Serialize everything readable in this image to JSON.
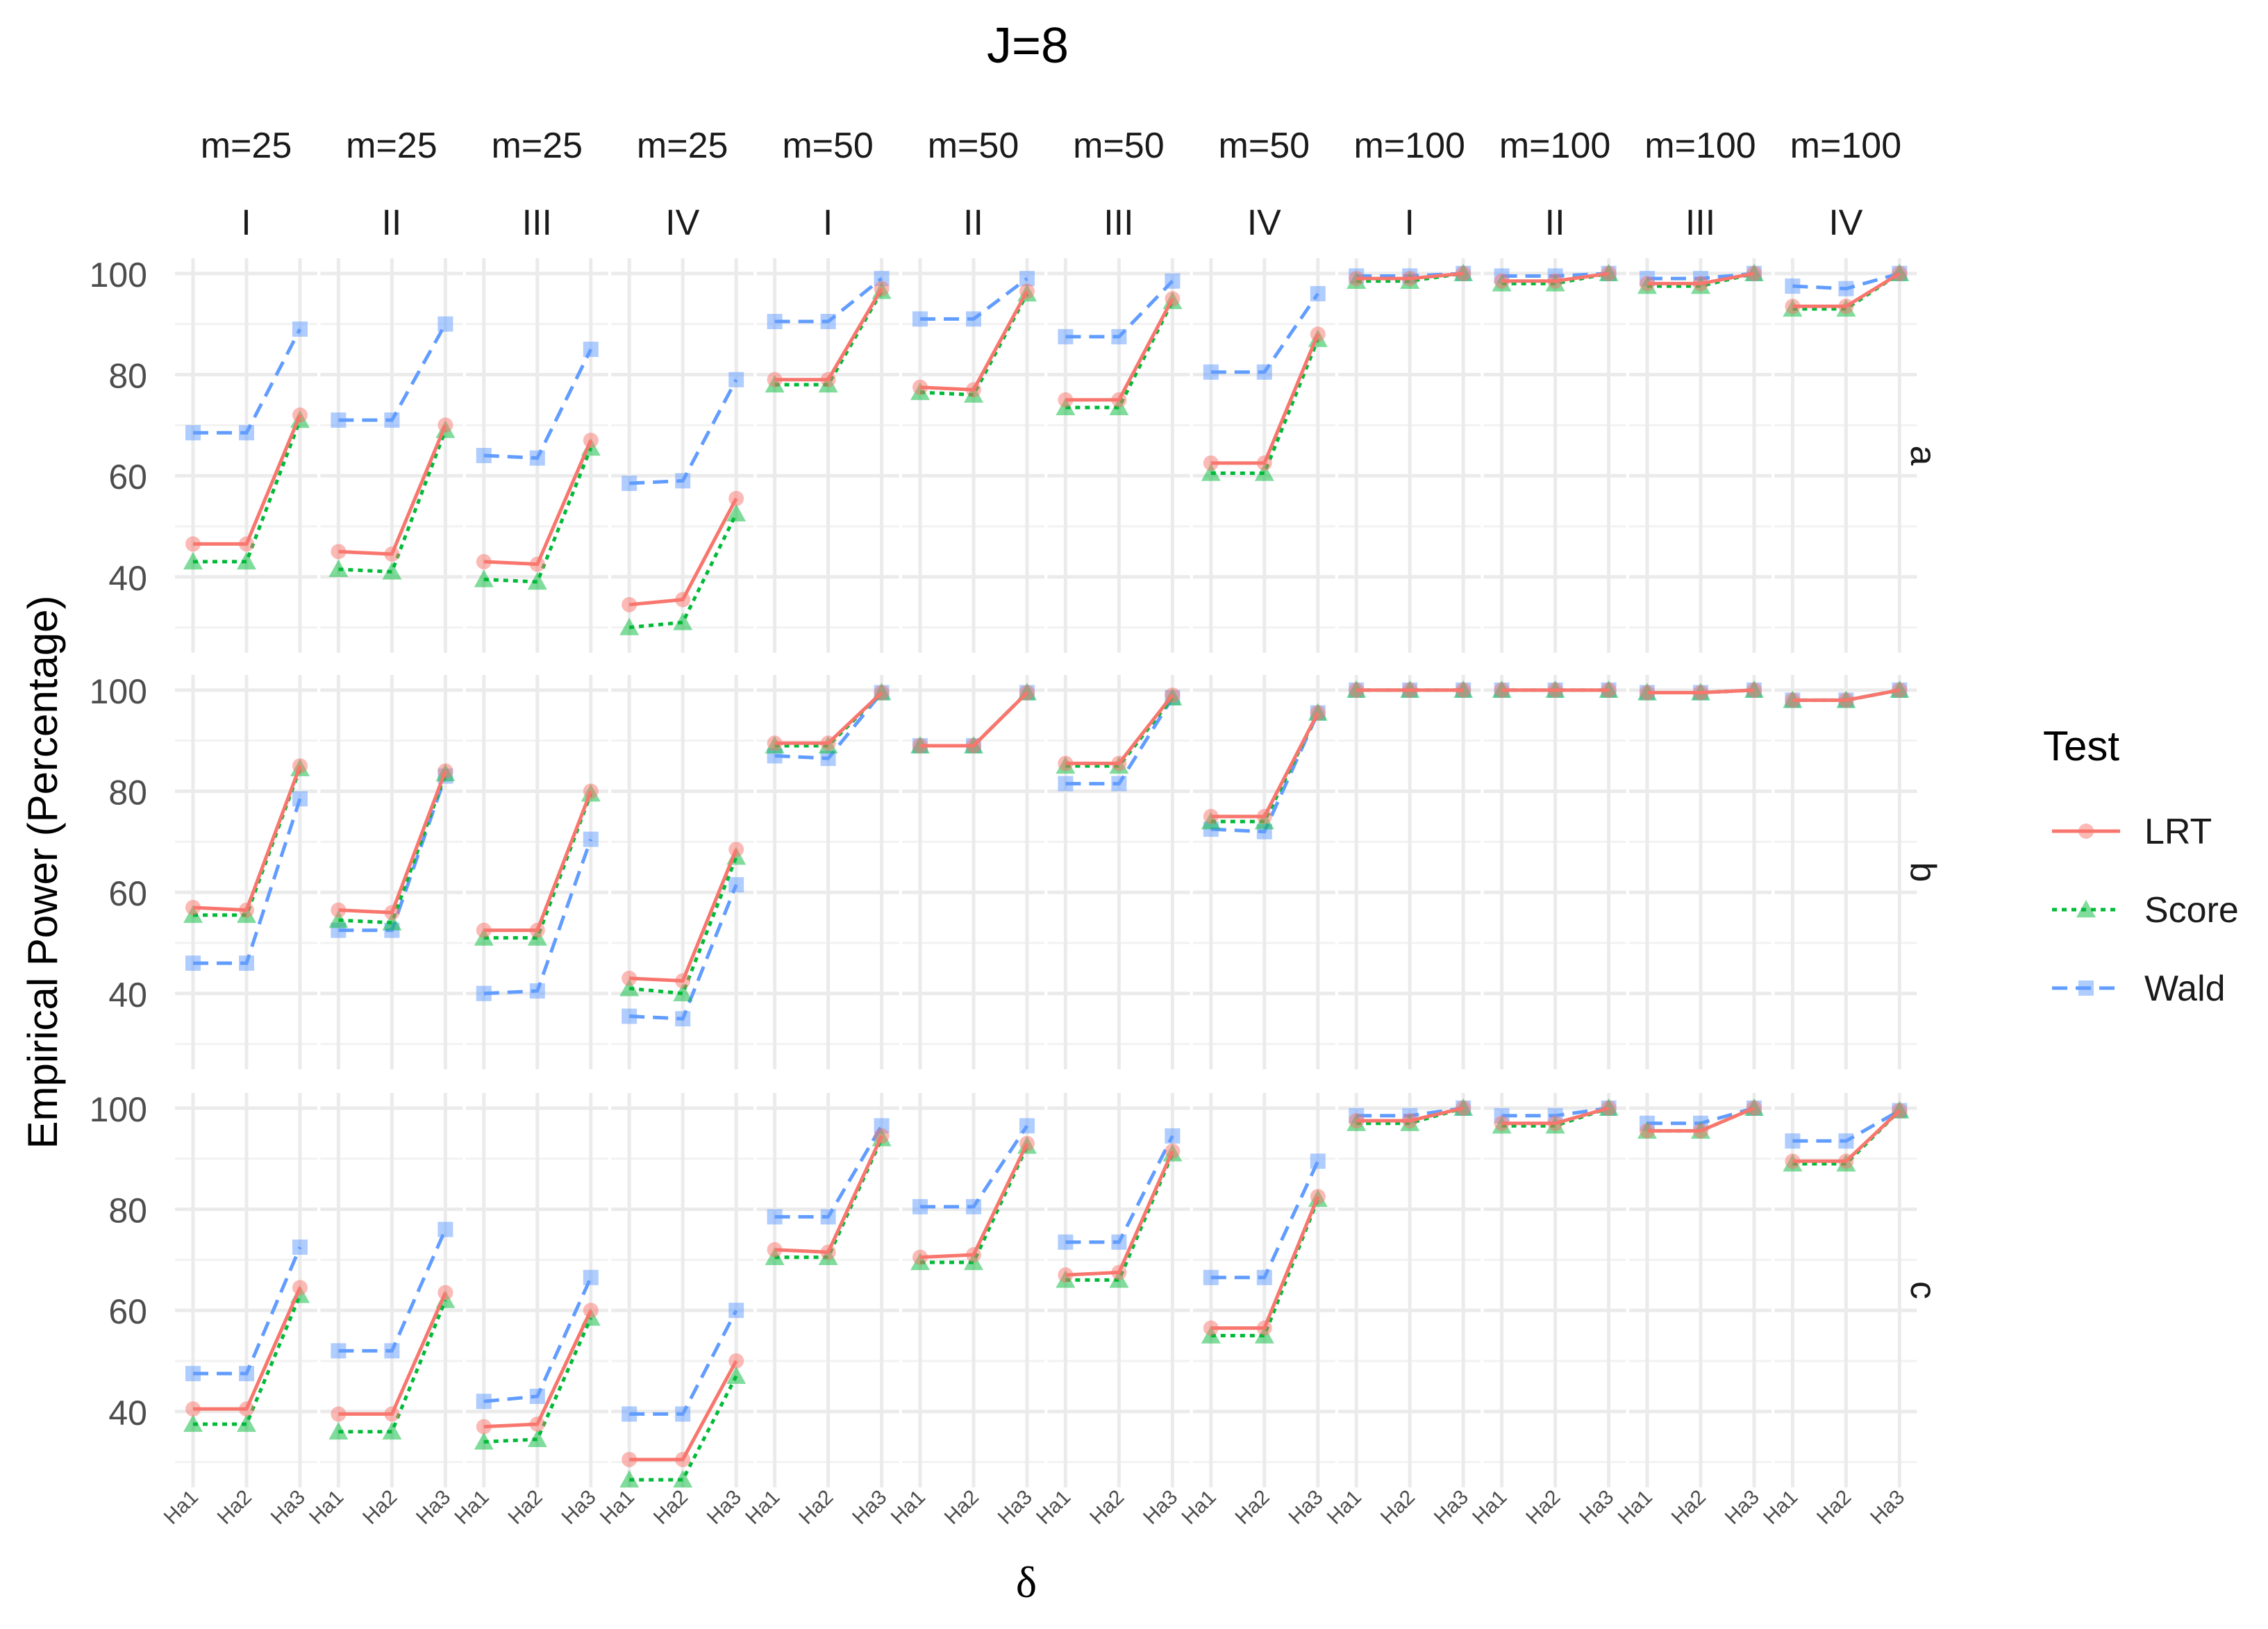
{
  "chart_data": {
    "type": "line",
    "title": "J=8",
    "xlabel": "δ",
    "ylabel": "Empirical Power (Percentage)",
    "categories": [
      "Ha1",
      "Ha2",
      "Ha3"
    ],
    "yticks": [
      40,
      60,
      80,
      100
    ],
    "ylim": [
      25,
      103
    ],
    "grid": true,
    "legend": {
      "title": "Test",
      "position": "right",
      "entries": [
        "LRT",
        "Score",
        "Wald"
      ]
    },
    "series_styles": [
      {
        "name": "LRT",
        "color": "#F8766D",
        "dash": "solid",
        "marker": "circle"
      },
      {
        "name": "Score",
        "color": "#00BA38",
        "dash": "dotted",
        "marker": "triangle"
      },
      {
        "name": "Wald",
        "color": "#619CFF",
        "dash": "dashed",
        "marker": "square"
      }
    ],
    "column_strips_top": [
      "m=25",
      "m=25",
      "m=25",
      "m=25",
      "m=50",
      "m=50",
      "m=50",
      "m=50",
      "m=100",
      "m=100",
      "m=100",
      "m=100"
    ],
    "column_strips_bottom": [
      "I",
      "II",
      "III",
      "IV",
      "I",
      "II",
      "III",
      "IV",
      "I",
      "II",
      "III",
      "IV"
    ],
    "row_strips": [
      "a",
      "b",
      "c"
    ],
    "panels": [
      [
        {
          "LRT": [
            46.5,
            46.5,
            72
          ],
          "Score": [
            43,
            43,
            71
          ],
          "Wald": [
            68.5,
            68.5,
            89
          ]
        },
        {
          "LRT": [
            45,
            44.5,
            70
          ],
          "Score": [
            41.5,
            41,
            69
          ],
          "Wald": [
            71,
            71,
            90
          ]
        },
        {
          "LRT": [
            43,
            42.5,
            67
          ],
          "Score": [
            39.5,
            39,
            65.5
          ],
          "Wald": [
            64,
            63.5,
            85
          ]
        },
        {
          "LRT": [
            34.5,
            35.5,
            55.5
          ],
          "Score": [
            30,
            31,
            52.5
          ],
          "Wald": [
            58.5,
            59,
            79
          ]
        },
        {
          "LRT": [
            79,
            79,
            97
          ],
          "Score": [
            78,
            78,
            96.5
          ],
          "Wald": [
            90.5,
            90.5,
            99
          ]
        },
        {
          "LRT": [
            77.5,
            77,
            96.5
          ],
          "Score": [
            76.5,
            76,
            96
          ],
          "Wald": [
            91,
            91,
            99
          ]
        },
        {
          "LRT": [
            75,
            75,
            95
          ],
          "Score": [
            73.5,
            73.5,
            94.5
          ],
          "Wald": [
            87.5,
            87.5,
            98.5
          ]
        },
        {
          "LRT": [
            62.5,
            62.5,
            88
          ],
          "Score": [
            60.5,
            60.5,
            87
          ],
          "Wald": [
            80.5,
            80.5,
            96
          ]
        },
        {
          "LRT": [
            99,
            99,
            100
          ],
          "Score": [
            98.5,
            98.5,
            100
          ],
          "Wald": [
            99.5,
            99.5,
            100
          ]
        },
        {
          "LRT": [
            98.5,
            98.5,
            100
          ],
          "Score": [
            98,
            98,
            100
          ],
          "Wald": [
            99.5,
            99.5,
            100
          ]
        },
        {
          "LRT": [
            98,
            98,
            100
          ],
          "Score": [
            97.5,
            97.5,
            100
          ],
          "Wald": [
            99,
            99,
            100
          ]
        },
        {
          "LRT": [
            93.5,
            93.5,
            100
          ],
          "Score": [
            93,
            93,
            100
          ],
          "Wald": [
            97.5,
            97,
            100
          ]
        }
      ],
      [
        {
          "LRT": [
            57,
            56.5,
            85
          ],
          "Score": [
            55.5,
            55.5,
            84.5
          ],
          "Wald": [
            46,
            46,
            78.5
          ]
        },
        {
          "LRT": [
            56.5,
            56,
            84
          ],
          "Score": [
            54.5,
            54,
            83.5
          ],
          "Wald": [
            52.5,
            52.5,
            83
          ]
        },
        {
          "LRT": [
            52.5,
            52.5,
            80
          ],
          "Score": [
            51,
            51,
            79.5
          ],
          "Wald": [
            40,
            40.5,
            70.5
          ]
        },
        {
          "LRT": [
            43,
            42.5,
            68.5
          ],
          "Score": [
            41,
            40,
            67
          ],
          "Wald": [
            35.5,
            35,
            61.5
          ]
        },
        {
          "LRT": [
            89.5,
            89.5,
            99.5
          ],
          "Score": [
            89,
            89,
            99.5
          ],
          "Wald": [
            87,
            86.5,
            99.5
          ]
        },
        {
          "LRT": [
            89,
            89,
            99.5
          ],
          "Score": [
            89,
            89,
            99.5
          ],
          "Wald": [
            89,
            89,
            99.5
          ]
        },
        {
          "LRT": [
            85.5,
            85.5,
            99
          ],
          "Score": [
            85,
            85,
            98.5
          ],
          "Wald": [
            81.5,
            81.5,
            98.5
          ]
        },
        {
          "LRT": [
            75,
            75,
            95.5
          ],
          "Score": [
            74,
            74,
            95.5
          ],
          "Wald": [
            72.5,
            72,
            95.5
          ]
        },
        {
          "LRT": [
            100,
            100,
            100
          ],
          "Score": [
            100,
            100,
            100
          ],
          "Wald": [
            100,
            100,
            100
          ]
        },
        {
          "LRT": [
            100,
            100,
            100
          ],
          "Score": [
            100,
            100,
            100
          ],
          "Wald": [
            100,
            100,
            100
          ]
        },
        {
          "LRT": [
            99.5,
            99.5,
            100
          ],
          "Score": [
            99.5,
            99.5,
            100
          ],
          "Wald": [
            99.5,
            99.5,
            100
          ]
        },
        {
          "LRT": [
            98,
            98,
            100
          ],
          "Score": [
            98,
            98,
            100
          ],
          "Wald": [
            98,
            98,
            100
          ]
        }
      ],
      [
        {
          "LRT": [
            40.5,
            40.5,
            64.5
          ],
          "Score": [
            37.5,
            37.5,
            63
          ],
          "Wald": [
            47.5,
            47.5,
            72.5
          ]
        },
        {
          "LRT": [
            39.5,
            39.5,
            63.5
          ],
          "Score": [
            36,
            36,
            62
          ],
          "Wald": [
            52,
            52,
            76
          ]
        },
        {
          "LRT": [
            37,
            37.5,
            60
          ],
          "Score": [
            34,
            34.5,
            58.5
          ],
          "Wald": [
            42,
            43,
            66.5
          ]
        },
        {
          "LRT": [
            30.5,
            30.5,
            50
          ],
          "Score": [
            26.5,
            26.5,
            47
          ],
          "Wald": [
            39.5,
            39.5,
            60
          ]
        },
        {
          "LRT": [
            72,
            71.5,
            94.5
          ],
          "Score": [
            70.5,
            70.5,
            94
          ],
          "Wald": [
            78.5,
            78.5,
            96.5
          ]
        },
        {
          "LRT": [
            70.5,
            71,
            93
          ],
          "Score": [
            69.5,
            69.5,
            92.5
          ],
          "Wald": [
            80.5,
            80.5,
            96.5
          ]
        },
        {
          "LRT": [
            67,
            67.5,
            91.5
          ],
          "Score": [
            66,
            66,
            91
          ],
          "Wald": [
            73.5,
            73.5,
            94.5
          ]
        },
        {
          "LRT": [
            56.5,
            56.5,
            82.5
          ],
          "Score": [
            55,
            55,
            82
          ],
          "Wald": [
            66.5,
            66.5,
            89.5
          ]
        },
        {
          "LRT": [
            97.5,
            97.5,
            100
          ],
          "Score": [
            97,
            97,
            100
          ],
          "Wald": [
            98.5,
            98.5,
            100
          ]
        },
        {
          "LRT": [
            97,
            97,
            100
          ],
          "Score": [
            96.5,
            96.5,
            100
          ],
          "Wald": [
            98.5,
            98.5,
            100
          ]
        },
        {
          "LRT": [
            95.5,
            95.5,
            100
          ],
          "Score": [
            95.5,
            95.5,
            100
          ],
          "Wald": [
            97,
            97,
            100
          ]
        },
        {
          "LRT": [
            89.5,
            89.5,
            99.5
          ],
          "Score": [
            89,
            89,
            99.5
          ],
          "Wald": [
            93.5,
            93.5,
            99.5
          ]
        }
      ]
    ]
  }
}
